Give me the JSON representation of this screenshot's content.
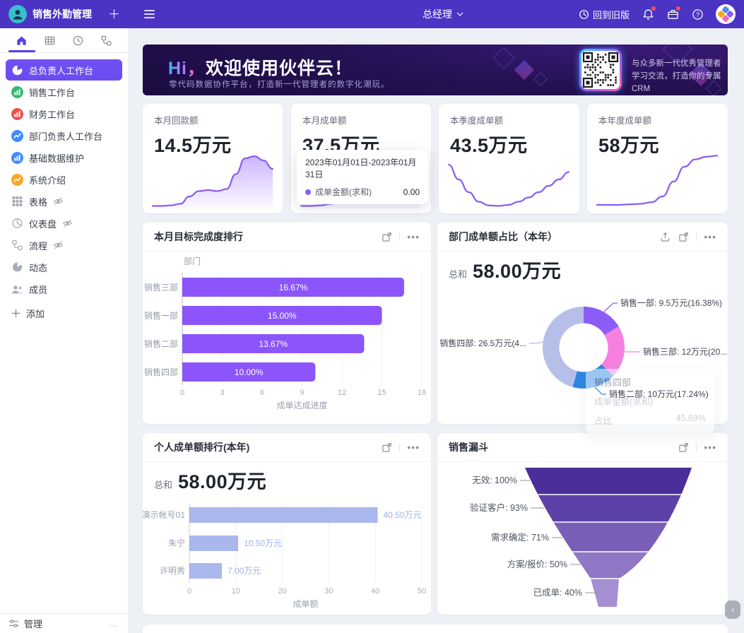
{
  "topbar": {
    "app_title": "销售外勤管理",
    "role": "总经理",
    "back_label": "回到旧版"
  },
  "sidebar": {
    "items": [
      {
        "label": "总负责人工作台"
      },
      {
        "label": "销售工作台"
      },
      {
        "label": "财务工作台"
      },
      {
        "label": "部门负责人工作台"
      },
      {
        "label": "基础数据维护"
      },
      {
        "label": "系统介绍"
      },
      {
        "label": "表格"
      },
      {
        "label": "仪表盘"
      },
      {
        "label": "流程"
      },
      {
        "label": "动态"
      },
      {
        "label": "成员"
      }
    ],
    "add_label": "添加",
    "manage_label": "管理"
  },
  "banner": {
    "greeting": "Hi",
    "comma": "，",
    "title": "欢迎使用伙伴云！",
    "subtitle": "零代码数据协作平台，打造新一代管理者的数字化潮玩。",
    "qr_line1": "与众多新一代优秀管理者",
    "qr_line2": "学习交流，打造你的专属CRM"
  },
  "stat_cards": [
    {
      "title": "本月回款额",
      "value": "14.5万元",
      "spark": [
        2,
        2,
        3,
        6,
        20,
        30,
        32,
        30,
        34,
        62,
        92,
        96,
        88,
        72
      ]
    },
    {
      "title": "本月成单额",
      "value": "37.5万元",
      "spark": [
        2,
        2,
        3,
        6,
        14,
        22,
        26,
        24,
        22,
        20,
        22,
        34,
        88
      ],
      "tooltip": {
        "date_range": "2023年01月01日-2023年01月31日",
        "series": "成单金额(求和)",
        "value": "0.00"
      }
    },
    {
      "title": "本季度成单额",
      "value": "43.5万元",
      "spark": [
        80,
        52,
        28,
        10,
        3,
        2,
        4,
        10,
        18,
        28,
        40,
        52,
        66
      ]
    },
    {
      "title": "本年度成单额",
      "value": "58万元",
      "spark": [
        4,
        4,
        4,
        5,
        6,
        9,
        20,
        48,
        76,
        90,
        95,
        97
      ]
    }
  ],
  "panels": {
    "bar": {
      "title": "本月目标完成度排行"
    },
    "donut": {
      "title": "部门成单额占比（本年）",
      "sum_label": "总和",
      "sum_value": "58.00万元",
      "tooltip": {
        "title": "销售四部",
        "row1_label": "成单金额(求和)",
        "row2_label": "占比",
        "row2_value": "45.69%"
      }
    },
    "personal": {
      "title": "个人成单额排行(本年)",
      "sum_label": "总和",
      "sum_value": "58.00万元"
    },
    "funnel": {
      "title": "销售漏斗"
    }
  },
  "chart_data": [
    {
      "type": "bar",
      "orientation": "horizontal",
      "title": "本月目标完成度排行",
      "y_axis_title": "部门",
      "categories": [
        "销售三部",
        "销售一部",
        "销售二部",
        "销售四部"
      ],
      "values": [
        16.67,
        15.0,
        13.67,
        10.0
      ],
      "bar_labels": [
        "16.67%",
        "15.00%",
        "13.67%",
        "10.00%"
      ],
      "xlim": [
        0,
        18
      ],
      "xticks": [
        0,
        3,
        6,
        9,
        12,
        15,
        18
      ],
      "xlabel": "成单达成进度",
      "bar_color": "#8c55fb",
      "grid": true
    },
    {
      "type": "donut",
      "title": "部门成单额占比（本年）",
      "total": "58.00万元",
      "slices": [
        {
          "name": "销售一部",
          "pct": 16.38,
          "label": "销售一部: 9.5万元(16.38%)",
          "color": "#8b5cf6"
        },
        {
          "name": "销售三部",
          "pct": 20.69,
          "label": "销售三部: 12万元(20...",
          "color": "#f580df"
        },
        {
          "name": "销售二部",
          "pct": 17.24,
          "label": "销售二部: 10万元(17.24%)",
          "color": "#2d87e2"
        },
        {
          "name": "销售四部",
          "pct": 45.69,
          "label": "销售四部: 26.5万元(4...",
          "color": "#b5bfe7"
        }
      ]
    },
    {
      "type": "bar",
      "orientation": "horizontal",
      "title": "个人成单额排行(本年)",
      "categories": [
        "演示帐号01",
        "朱宁",
        "许明秀"
      ],
      "values": [
        40.5,
        10.5,
        7.0
      ],
      "bar_labels": [
        "40.50万元",
        "10.50万元",
        "7.00万元"
      ],
      "xlim": [
        0,
        50
      ],
      "xticks": [
        0,
        10,
        20,
        30,
        40,
        50
      ],
      "xlabel": "成单额",
      "bar_color": "#a9b7ec",
      "grid": true
    },
    {
      "type": "funnel",
      "title": "销售漏斗",
      "stages": [
        {
          "label": "无效: 100%",
          "pct": 100,
          "color": "#4b2e99"
        },
        {
          "label": "验证客户: 93%",
          "pct": 93,
          "color": "#5e41a8"
        },
        {
          "label": "需求确定: 71%",
          "pct": 71,
          "color": "#7a5fb8"
        },
        {
          "label": "方案/报价: 50%",
          "pct": 50,
          "color": "#9077c5"
        },
        {
          "label": "已成单: 40%",
          "pct": 40,
          "color": "#a58fd2"
        }
      ]
    }
  ]
}
